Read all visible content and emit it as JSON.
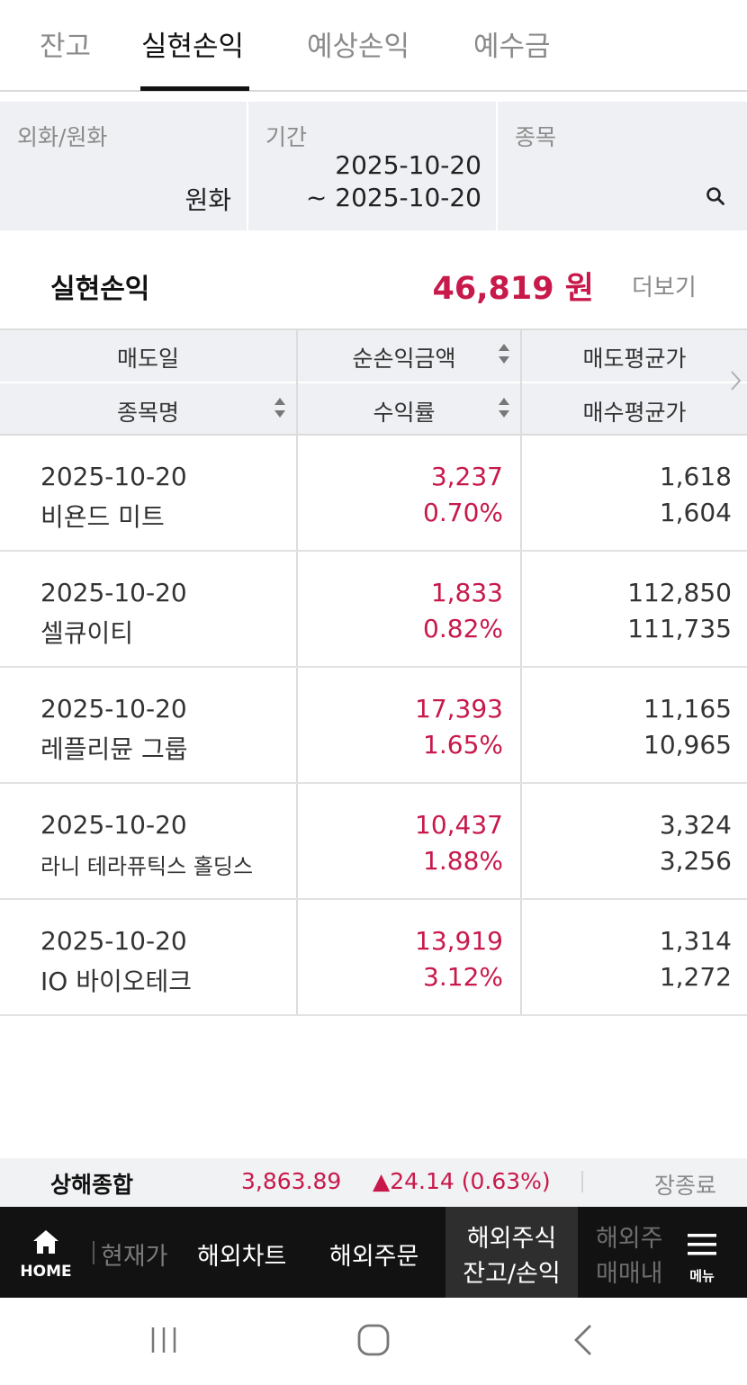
{
  "tabs": [
    {
      "label": "잔고"
    },
    {
      "label": "실현손익"
    },
    {
      "label": "예상손익"
    },
    {
      "label": "예수금"
    }
  ],
  "filters": {
    "currency": {
      "label": "외화/원화",
      "value": "원화"
    },
    "period": {
      "label": "기간",
      "start": "2025-10-20",
      "end": "~ 2025-10-20"
    },
    "stock": {
      "label": "종목"
    }
  },
  "summary": {
    "label": "실현손익",
    "value": "46,819 원",
    "more": "더보기"
  },
  "table": {
    "headers": {
      "sell_date": "매도일",
      "net_profit": "순손익금액",
      "sell_avg": "매도평균가",
      "stock_name": "종목명",
      "return_rate": "수익률",
      "buy_avg": "매수평균가"
    },
    "rows": [
      {
        "date": "2025-10-20",
        "name": "비욘드 미트",
        "profit": "3,237",
        "rate": "0.70%",
        "sell_avg": "1,618",
        "buy_avg": "1,604"
      },
      {
        "date": "2025-10-20",
        "name": "셀큐이티",
        "profit": "1,833",
        "rate": "0.82%",
        "sell_avg": "112,850",
        "buy_avg": "111,735"
      },
      {
        "date": "2025-10-20",
        "name": "레플리뮨 그룹",
        "profit": "17,393",
        "rate": "1.65%",
        "sell_avg": "11,165",
        "buy_avg": "10,965"
      },
      {
        "date": "2025-10-20",
        "name": "라니 테라퓨틱스 홀딩스",
        "profit": "10,437",
        "rate": "1.88%",
        "sell_avg": "3,324",
        "buy_avg": "3,256"
      },
      {
        "date": "2025-10-20",
        "name": "IO 바이오테크",
        "profit": "13,919",
        "rate": "3.12%",
        "sell_avg": "1,314",
        "buy_avg": "1,272"
      }
    ]
  },
  "index_bar": {
    "name": "상해종합",
    "value": "3,863.89",
    "change": "▲24.14 (0.63%)",
    "status": "장종료"
  },
  "nav": {
    "home": "HOME",
    "items": [
      "현재가",
      "해외차트",
      "해외주문"
    ],
    "active_line1": "해외주식",
    "active_line2": "잔고/손익",
    "clipped_line1": "해외주",
    "clipped_line2": "매매내",
    "menu": "메뉴"
  },
  "colors": {
    "accent": "#c8194b",
    "nav_bg": "#121212"
  }
}
